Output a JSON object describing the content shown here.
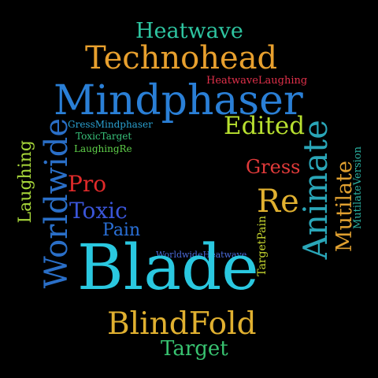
{
  "words": [
    {
      "id": "heatwave",
      "text": "Heatwave",
      "color": "#2ec4a0"
    },
    {
      "id": "technohead",
      "text": "Technohead",
      "color": "#e8a02e"
    },
    {
      "id": "heatwavelaughing",
      "text": "HeatwaveLaughing",
      "color": "#e0304a"
    },
    {
      "id": "mindphaser",
      "text": "Mindphaser",
      "color": "#2a7fd6"
    },
    {
      "id": "gressmindphaser",
      "text": "GressMindphaser",
      "color": "#2aa0d0"
    },
    {
      "id": "toxictarget",
      "text": "ToxicTarget",
      "color": "#38c27a"
    },
    {
      "id": "laughingre",
      "text": "LaughingRe",
      "color": "#5fd04a"
    },
    {
      "id": "edited",
      "text": "Edited",
      "color": "#b8e030"
    },
    {
      "id": "worldwide",
      "text": "Worldwide",
      "color": "#2a6fc8"
    },
    {
      "id": "laughing",
      "text": "Laughing",
      "color": "#a8d83a"
    },
    {
      "id": "pro",
      "text": "Pro",
      "color": "#e02a2a"
    },
    {
      "id": "toxic",
      "text": "Toxic",
      "color": "#3a55d8"
    },
    {
      "id": "pain",
      "text": "Pain",
      "color": "#2a70d8"
    },
    {
      "id": "gress",
      "text": "Gress",
      "color": "#e03a3a"
    },
    {
      "id": "re",
      "text": "Re",
      "color": "#e0b030"
    },
    {
      "id": "animate",
      "text": "Animate",
      "color": "#2aa6b8"
    },
    {
      "id": "mutilate",
      "text": "Mutilate",
      "color": "#e0a030"
    },
    {
      "id": "mutilateversion",
      "text": "MutilateVersion",
      "color": "#2ab0a0"
    },
    {
      "id": "targetpain",
      "text": "TargetPain",
      "color": "#c8d830"
    },
    {
      "id": "worldwideheatwave",
      "text": "WorldwideHeatwave",
      "color": "#4a6ad8"
    },
    {
      "id": "blade",
      "text": "Blade",
      "color": "#2ac8e0"
    },
    {
      "id": "blindfold",
      "text": "BlindFold",
      "color": "#e0b030"
    },
    {
      "id": "target",
      "text": "Target",
      "color": "#38c270"
    }
  ]
}
